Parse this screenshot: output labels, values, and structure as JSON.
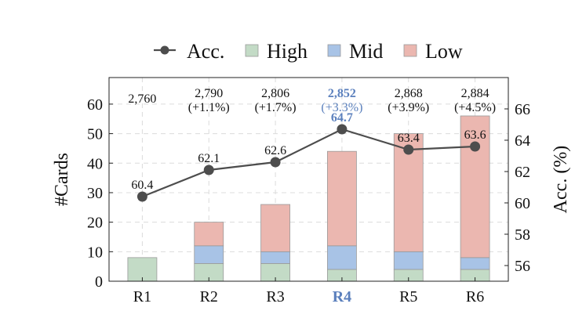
{
  "chart_data": {
    "type": "bar",
    "stacked": true,
    "categories": [
      "R1",
      "R2",
      "R3",
      "R4",
      "R5",
      "R6"
    ],
    "highlight_category": "R4",
    "ylabel": "#Cards",
    "y2label": "Acc. (%)",
    "ylim": [
      0,
      69
    ],
    "yticks": [
      0,
      10,
      20,
      30,
      40,
      50,
      60
    ],
    "y2lim": [
      55.0,
      68.0
    ],
    "y2ticks": [
      56,
      58,
      60,
      62,
      64,
      66
    ],
    "grid": true,
    "legend_position": "top",
    "legend": [
      {
        "name": "Acc.",
        "kind": "line"
      },
      {
        "name": "High",
        "kind": "bar"
      },
      {
        "name": "Mid",
        "kind": "bar"
      },
      {
        "name": "Low",
        "kind": "bar"
      }
    ],
    "series": [
      {
        "name": "High",
        "values": [
          8,
          6,
          6,
          4,
          4,
          4
        ],
        "color": "#c3dbc6"
      },
      {
        "name": "Mid",
        "values": [
          0,
          6,
          4,
          8,
          6,
          4
        ],
        "color": "#a8c3e6"
      },
      {
        "name": "Low",
        "values": [
          0,
          8,
          16,
          32,
          40,
          48
        ],
        "color": "#ebb7b0"
      }
    ],
    "acc_series": {
      "name": "Acc.",
      "values": [
        60.4,
        62.1,
        62.6,
        64.7,
        63.4,
        63.6
      ],
      "labels": [
        "60.4",
        "62.1",
        "62.6",
        "64.7",
        "63.4",
        "63.6"
      ],
      "color": "#4d4d4d"
    },
    "card_annotations": [
      {
        "total": "2,760",
        "change": ""
      },
      {
        "total": "2,790",
        "change": "(+1.1%)"
      },
      {
        "total": "2,806",
        "change": "(+1.7%)"
      },
      {
        "total": "2,852",
        "change": "(+3.3%)"
      },
      {
        "total": "2,868",
        "change": "(+3.9%)"
      },
      {
        "total": "2,884",
        "change": "(+4.5%)"
      }
    ],
    "highlight_color": "#5b80bd"
  }
}
